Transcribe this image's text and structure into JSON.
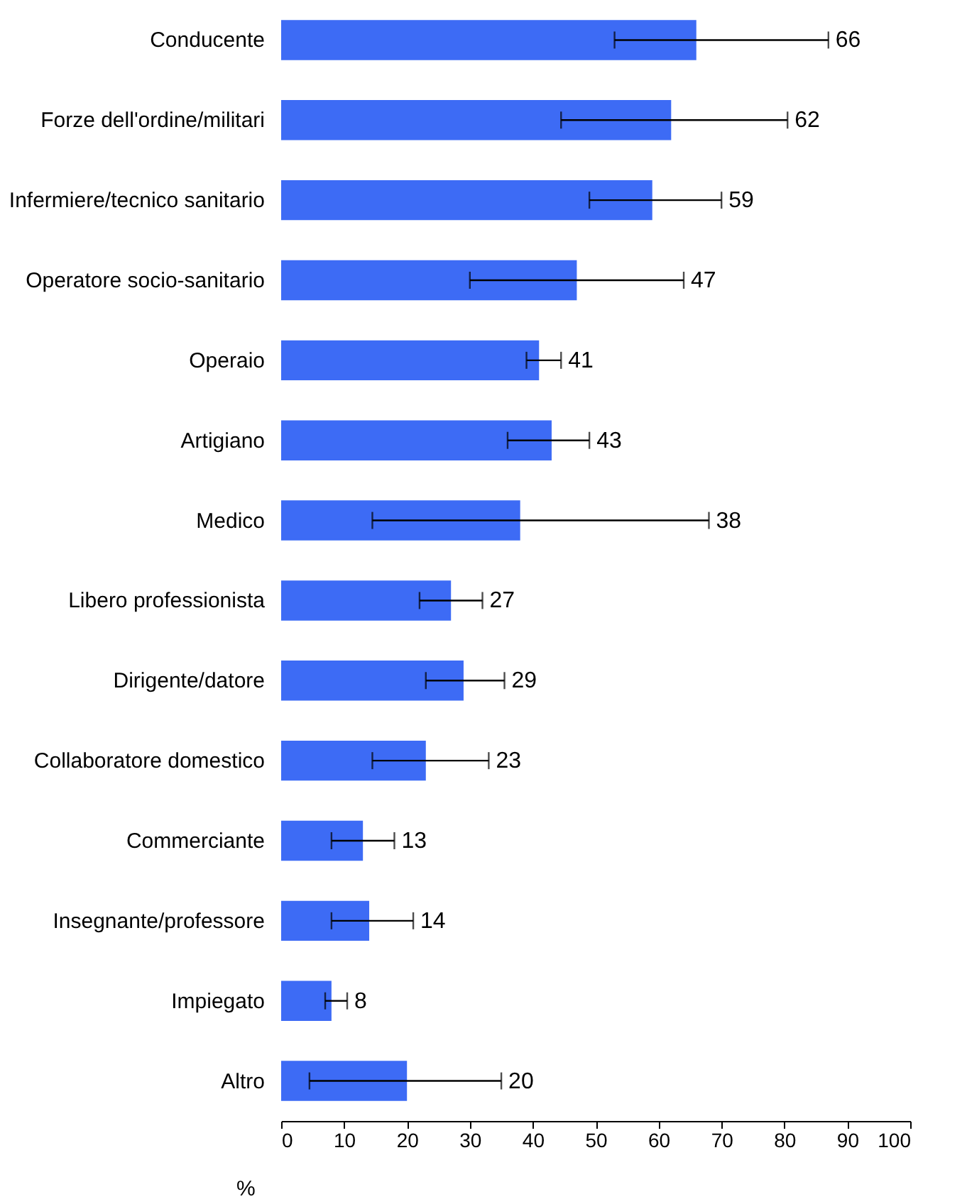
{
  "chart_data": {
    "type": "bar",
    "orientation": "horizontal",
    "xlabel": "%",
    "categories": [
      "Conducente",
      "Forze dell'ordine/militari",
      "Infermiere/tecnico sanitario",
      "Operatore socio-sanitario",
      "Operaio",
      "Artigiano",
      "Medico",
      "Libero professionista",
      "Dirigente/datore",
      "Collaboratore domestico",
      "Commerciante",
      "Insegnante/professore",
      "Impiegato",
      "Altro"
    ],
    "values": [
      66,
      62,
      59,
      47,
      41,
      43,
      38,
      27,
      29,
      23,
      13,
      14,
      8,
      20
    ],
    "errors": [
      [
        53,
        87
      ],
      [
        44.5,
        80.5
      ],
      [
        49,
        70
      ],
      [
        30,
        64
      ],
      [
        39,
        44.5
      ],
      [
        36,
        49
      ],
      [
        14.5,
        68
      ],
      [
        22,
        32
      ],
      [
        23,
        35.5
      ],
      [
        14.5,
        33
      ],
      [
        8,
        18
      ],
      [
        8,
        21
      ],
      [
        7,
        10.5
      ],
      [
        4.5,
        35
      ]
    ],
    "annotations": [
      {
        "text": "66",
        "x": 87,
        "y": "Conducente"
      },
      {
        "text": "62",
        "x": 80.5,
        "y": "Forze dell'ordine/militari"
      },
      {
        "text": "59",
        "x": 70,
        "y": "Infermiere/tecnico sanitario"
      },
      {
        "text": "47",
        "x": 64,
        "y": "Operatore socio-sanitario"
      },
      {
        "text": "41",
        "x": 44.5,
        "y": "Operaio"
      },
      {
        "text": "43",
        "x": 49,
        "y": "Artigiano"
      },
      {
        "text": "38",
        "x": 68,
        "y": "Medico"
      },
      {
        "text": "27",
        "x": 32,
        "y": "Libero professionista"
      },
      {
        "text": "29",
        "x": 35.5,
        "y": "Dirigente/datore"
      },
      {
        "text": "23",
        "x": 33,
        "y": "Collaboratore domestico"
      },
      {
        "text": "13",
        "x": 18,
        "y": "Commerciante"
      },
      {
        "text": "14",
        "x": 21,
        "y": "Insegnante/professore"
      },
      {
        "text": "8",
        "x": 10.5,
        "y": "Impiegato"
      },
      {
        "text": "20",
        "x": 35,
        "y": "Altro"
      }
    ],
    "color": "#3d6bf5",
    "xlim": [
      0,
      100
    ],
    "xticks": [
      0,
      10,
      20,
      30,
      40,
      50,
      60,
      70,
      80,
      90,
      100
    ],
    "grid": false
  }
}
